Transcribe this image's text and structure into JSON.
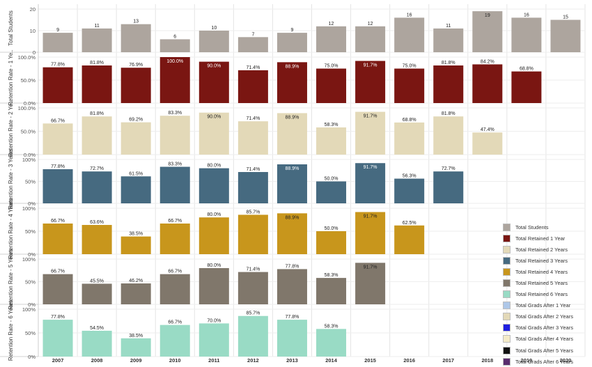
{
  "chart_data": {
    "type": "bar",
    "categories": [
      "2007",
      "2008",
      "2009",
      "2010",
      "2011",
      "2012",
      "2013",
      "2014",
      "2015",
      "2016",
      "2017",
      "2018",
      "2019",
      "2020"
    ],
    "panels": [
      {
        "ylabel": "Total Students",
        "ylim": [
          0,
          20
        ],
        "ticks": [
          "20",
          "10",
          "0"
        ],
        "tick_values": [
          20,
          10,
          0
        ],
        "color": "#ADA59E",
        "values": [
          9,
          11,
          13,
          6,
          10,
          7,
          9,
          12,
          12,
          16,
          11,
          19,
          16,
          15
        ],
        "labels": [
          "9",
          "11",
          "13",
          "6",
          "10",
          "7",
          "9",
          "12",
          "12",
          "16",
          "11",
          "19",
          "16",
          "15"
        ]
      },
      {
        "ylabel": "Retention Rate - 1 Ye..",
        "ylim": [
          0,
          100
        ],
        "ticks": [
          "100.0%",
          "50.0%",
          "0.0%"
        ],
        "tick_values": [
          100,
          50,
          0
        ],
        "color": "#7A1612",
        "values": [
          77.8,
          81.8,
          76.9,
          100.0,
          90.0,
          71.4,
          88.9,
          75.0,
          91.7,
          75.0,
          81.8,
          84.2,
          68.8,
          null
        ],
        "labels": [
          "77.8%",
          "81.8%",
          "76.9%",
          "100.0%",
          "90.0%",
          "71.4%",
          "88.9%",
          "75.0%",
          "91.7%",
          "75.0%",
          "81.8%",
          "84.2%",
          "68.8%",
          ""
        ]
      },
      {
        "ylabel": "Retention Rate - 2 Ye..",
        "ylim": [
          0,
          100
        ],
        "ticks": [
          "100.0%",
          "50.0%",
          "0.0%"
        ],
        "tick_values": [
          100,
          50,
          0
        ],
        "color": "#E3D9B8",
        "values": [
          66.7,
          81.8,
          69.2,
          83.3,
          90.0,
          71.4,
          88.9,
          58.3,
          91.7,
          68.8,
          81.8,
          47.4,
          null,
          null
        ],
        "labels": [
          "66.7%",
          "81.8%",
          "69.2%",
          "83.3%",
          "90.0%",
          "71.4%",
          "88.9%",
          "58.3%",
          "91.7%",
          "68.8%",
          "81.8%",
          "47.4%",
          "",
          ""
        ]
      },
      {
        "ylabel": "Retention Rate - 3 Years",
        "ylim": [
          0,
          100
        ],
        "ticks": [
          "100%",
          "50%",
          "0%"
        ],
        "tick_values": [
          100,
          50,
          0
        ],
        "color": "#466A80",
        "values": [
          77.8,
          72.7,
          61.5,
          83.3,
          80.0,
          71.4,
          88.9,
          50.0,
          91.7,
          56.3,
          72.7,
          null,
          null,
          null
        ],
        "labels": [
          "77.8%",
          "72.7%",
          "61.5%",
          "83.3%",
          "80.0%",
          "71.4%",
          "88.9%",
          "50.0%",
          "91.7%",
          "56.3%",
          "72.7%",
          "",
          "",
          ""
        ]
      },
      {
        "ylabel": "Retention Rate - 4 Years",
        "ylim": [
          0,
          100
        ],
        "ticks": [
          "100%",
          "50%",
          "0%"
        ],
        "tick_values": [
          100,
          50,
          0
        ],
        "color": "#C8961C",
        "values": [
          66.7,
          63.6,
          38.5,
          66.7,
          80.0,
          85.7,
          88.9,
          50.0,
          91.7,
          62.5,
          null,
          null,
          null,
          null
        ],
        "labels": [
          "66.7%",
          "63.6%",
          "38.5%",
          "66.7%",
          "80.0%",
          "85.7%",
          "88.9%",
          "50.0%",
          "91.7%",
          "62.5%",
          "",
          "",
          "",
          ""
        ]
      },
      {
        "ylabel": "Retention Rate - 5 Years",
        "ylim": [
          0,
          100
        ],
        "ticks": [
          "100%",
          "50%",
          "0%"
        ],
        "tick_values": [
          100,
          50,
          0
        ],
        "color": "#80776B",
        "values": [
          66.7,
          45.5,
          46.2,
          66.7,
          80.0,
          71.4,
          77.8,
          58.3,
          91.7,
          null,
          null,
          null,
          null,
          null
        ],
        "labels": [
          "66.7%",
          "45.5%",
          "46.2%",
          "66.7%",
          "80.0%",
          "71.4%",
          "77.8%",
          "58.3%",
          "91.7%",
          "",
          "",
          "",
          "",
          ""
        ]
      },
      {
        "ylabel": "Retention Rate - 6 Years",
        "ylim": [
          0,
          100
        ],
        "ticks": [
          "100%",
          "50%",
          "0%"
        ],
        "tick_values": [
          100,
          50,
          0
        ],
        "color": "#99DBC5",
        "values": [
          77.8,
          54.5,
          38.5,
          66.7,
          70.0,
          85.7,
          77.8,
          58.3,
          null,
          null,
          null,
          null,
          null,
          null
        ],
        "labels": [
          "77.8%",
          "54.5%",
          "38.5%",
          "66.7%",
          "70.0%",
          "85.7%",
          "77.8%",
          "58.3%",
          "",
          "",
          "",
          "",
          "",
          ""
        ]
      }
    ],
    "legend": {
      "placement": "right",
      "items": [
        {
          "label": "Total Students",
          "color": "#ADA59E"
        },
        {
          "label": "Total Retained 1 Year",
          "color": "#7A1612"
        },
        {
          "label": "Total Retained 2 Years",
          "color": "#E3D9B8"
        },
        {
          "label": "Total Retained 3 Years",
          "color": "#466A80"
        },
        {
          "label": "Total Retained 4 Years",
          "color": "#C8961C"
        },
        {
          "label": "Total Retained 5 Years",
          "color": "#80776B"
        },
        {
          "label": "Total Retained 6 Years",
          "color": "#99DBC5"
        },
        {
          "label": "Total Grads After 1 Year",
          "color": "#AEC7E8"
        },
        {
          "label": "Total Grads After 2 Years",
          "color": "#E3D9B8"
        },
        {
          "label": "Total Grads After 3 Years",
          "color": "#1F1FE0"
        },
        {
          "label": "Total Grads After 4 Years",
          "color": "#F4EBC8"
        },
        {
          "label": "Total Grads After 5 Years",
          "color": "#111111"
        },
        {
          "label": "Total Grads After 6 Years",
          "color": "#5A2D6E"
        }
      ]
    },
    "grid": true
  }
}
